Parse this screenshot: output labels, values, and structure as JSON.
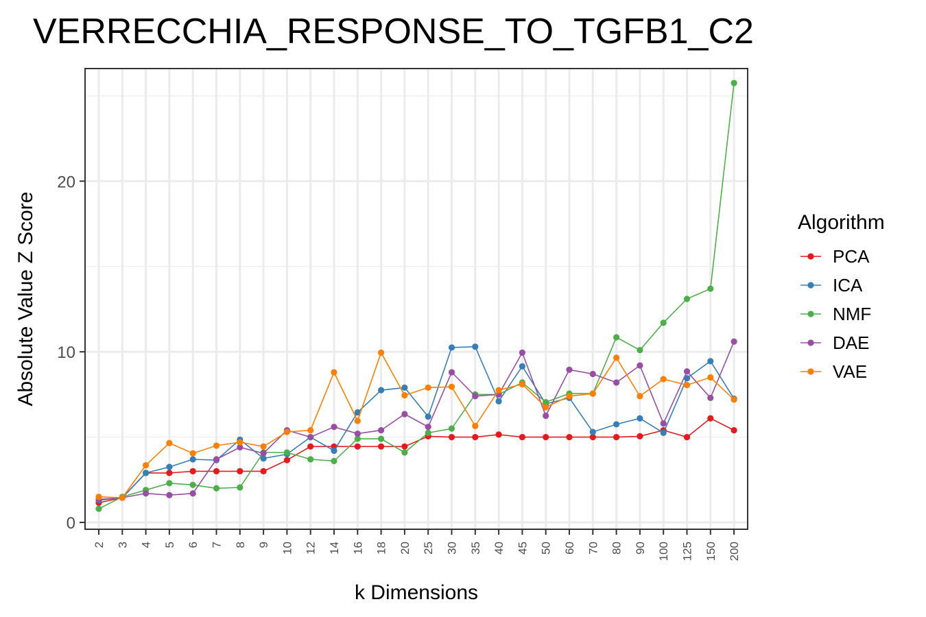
{
  "chart_data": {
    "type": "line",
    "title": "VERRECCHIA_RESPONSE_TO_TGFB1_C2",
    "xlabel": "k Dimensions",
    "ylabel": "Absolute Value Z Score",
    "categories": [
      "2",
      "3",
      "4",
      "5",
      "6",
      "7",
      "8",
      "9",
      "10",
      "12",
      "14",
      "16",
      "18",
      "20",
      "25",
      "30",
      "35",
      "40",
      "45",
      "50",
      "60",
      "70",
      "80",
      "90",
      "100",
      "125",
      "150",
      "200"
    ],
    "yticks": [
      "0",
      "10",
      "20"
    ],
    "ylim": [
      -0.4,
      26.6
    ],
    "grid": true,
    "legend_title": "Algorithm",
    "legend_position": "right",
    "series": [
      {
        "name": "PCA",
        "color": "#E41A1C",
        "values": [
          1.15,
          1.45,
          2.9,
          2.9,
          3.0,
          3.0,
          3.0,
          3.0,
          3.65,
          4.45,
          4.45,
          4.45,
          4.45,
          4.45,
          5.05,
          5.0,
          5.0,
          5.15,
          5.0,
          5.0,
          5.0,
          5.0,
          5.0,
          5.05,
          5.4,
          5.0,
          6.1,
          5.4
        ]
      },
      {
        "name": "ICA",
        "color": "#377EB8",
        "values": [
          1.3,
          1.45,
          2.9,
          3.25,
          3.7,
          3.65,
          4.85,
          3.75,
          4.0,
          5.0,
          4.2,
          6.45,
          7.75,
          7.9,
          6.2,
          10.25,
          10.3,
          7.1,
          9.15,
          6.95,
          7.3,
          5.3,
          5.75,
          6.1,
          5.25,
          8.45,
          9.45,
          7.25
        ]
      },
      {
        "name": "NMF",
        "color": "#4DAF4A",
        "values": [
          0.8,
          1.5,
          1.9,
          2.3,
          2.2,
          2.0,
          2.05,
          4.1,
          4.1,
          3.7,
          3.6,
          4.9,
          4.9,
          4.1,
          5.25,
          5.5,
          7.5,
          7.5,
          8.2,
          7.05,
          7.55,
          7.55,
          10.85,
          10.1,
          11.7,
          13.1,
          13.7,
          25.75
        ]
      },
      {
        "name": "DAE",
        "color": "#984EA3",
        "values": [
          1.35,
          1.45,
          1.7,
          1.6,
          1.7,
          3.7,
          4.4,
          4.05,
          5.4,
          5.0,
          5.6,
          5.2,
          5.4,
          6.35,
          5.6,
          8.8,
          7.4,
          7.5,
          9.95,
          6.25,
          8.95,
          8.7,
          8.2,
          9.2,
          5.8,
          8.85,
          7.3,
          10.6
        ]
      },
      {
        "name": "VAE",
        "color": "#FF7F00",
        "values": [
          1.5,
          1.45,
          3.35,
          4.65,
          4.05,
          4.5,
          4.7,
          4.45,
          5.3,
          5.4,
          8.8,
          5.95,
          9.95,
          7.45,
          7.9,
          7.95,
          5.65,
          7.75,
          8.1,
          6.75,
          7.4,
          7.55,
          9.65,
          7.4,
          8.4,
          8.05,
          8.5,
          7.2
        ]
      }
    ]
  }
}
